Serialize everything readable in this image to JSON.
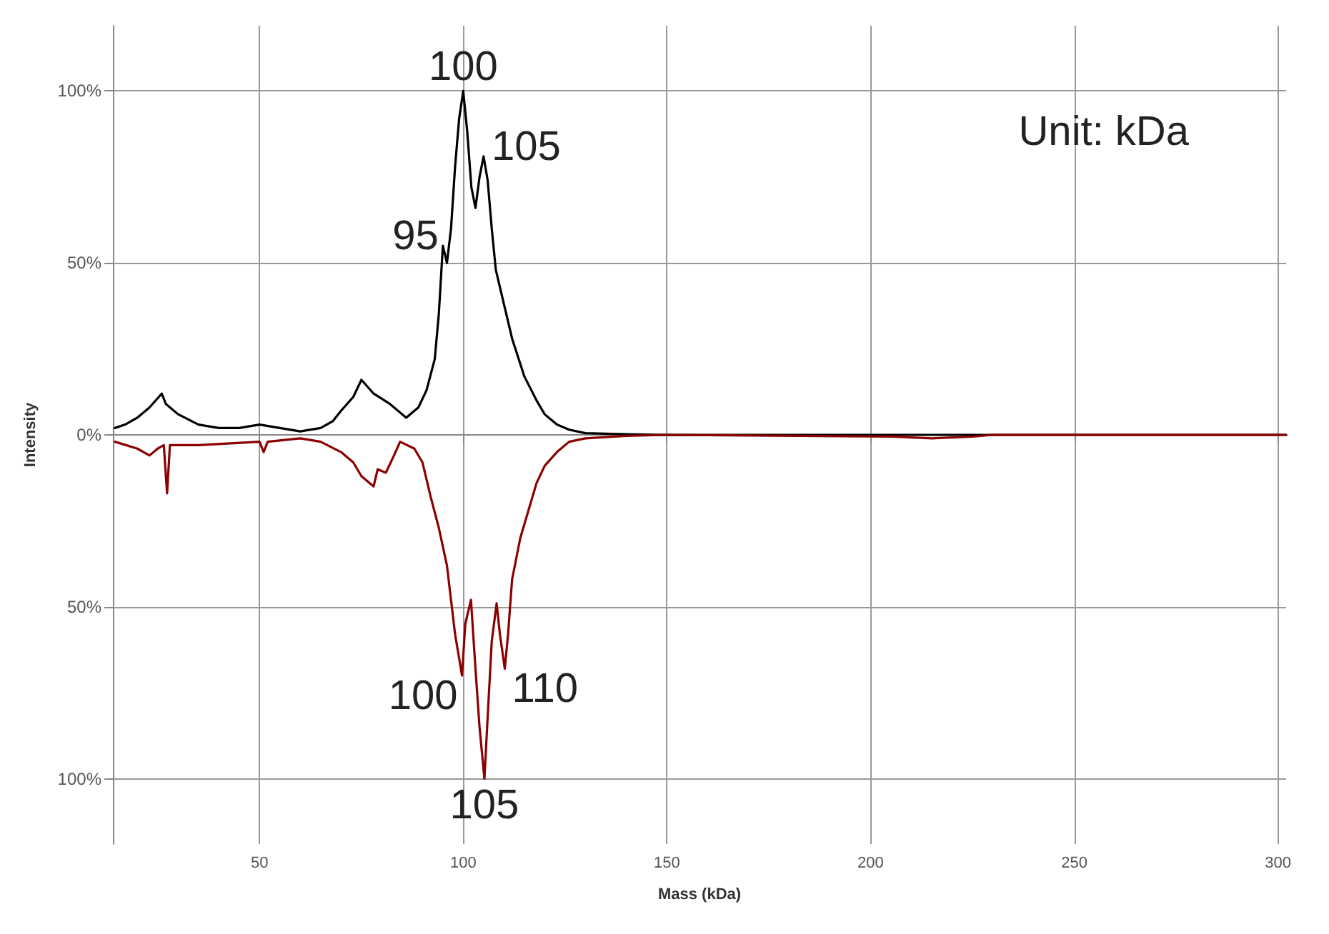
{
  "chart_data": {
    "type": "line",
    "xlabel": "Mass (kDa)",
    "ylabel": "Intensity",
    "xlim": [
      14,
      302
    ],
    "ylim": [
      -119,
      119
    ],
    "xticks": [
      50,
      100,
      150,
      200,
      250,
      300
    ],
    "yticks": [
      {
        "value": 100,
        "label": "100%"
      },
      {
        "value": 50,
        "label": "50%"
      },
      {
        "value": 0,
        "label": "0%"
      },
      {
        "value": -50,
        "label": "50%"
      },
      {
        "value": -100,
        "label": "100%"
      }
    ],
    "grid": true,
    "marker": "none",
    "line_style": "solid",
    "series": [
      {
        "color": "#000000",
        "x": [
          14.5,
          17,
          20,
          23,
          26,
          27,
          30,
          35,
          40,
          45,
          50,
          55,
          60,
          65,
          68,
          70,
          73,
          75,
          78,
          82,
          85,
          86,
          89,
          91,
          93,
          94,
          95,
          96,
          97,
          98,
          99,
          100,
          101,
          102,
          103,
          104,
          105,
          106,
          107,
          108,
          110,
          112,
          115,
          118,
          120,
          123,
          126,
          130,
          140,
          150,
          200,
          250,
          302
        ],
        "values": [
          2,
          3,
          5,
          8,
          12,
          9,
          6,
          3,
          2,
          2,
          3,
          2,
          1,
          2,
          4,
          7,
          11,
          16,
          12,
          9,
          6,
          5,
          8,
          13,
          22,
          35,
          55,
          50,
          60,
          78,
          92,
          100,
          88,
          72,
          66,
          75,
          81,
          74,
          60,
          48,
          38,
          28,
          17,
          10,
          6,
          3,
          1.5,
          0.5,
          0.2,
          0,
          0,
          0,
          0
        ]
      },
      {
        "color": "#8b0000",
        "x": [
          14.5,
          20,
          23,
          25,
          26.5,
          27.3,
          28,
          35,
          50,
          51,
          52,
          60,
          65,
          70,
          73,
          75,
          78,
          79,
          81,
          83,
          84.5,
          88,
          90,
          92,
          94,
          96,
          98,
          99.7,
          100.5,
          101.9,
          103,
          104,
          105.2,
          106,
          107,
          108.2,
          109,
          110.2,
          111,
          112,
          114,
          116,
          118,
          120,
          123,
          126,
          130,
          140,
          150,
          205,
          215,
          225,
          230,
          302
        ],
        "values": [
          -2,
          -4,
          -6,
          -4,
          -3,
          -17,
          -3,
          -3,
          -2,
          -5,
          -2,
          -1,
          -2,
          -5,
          -8,
          -12,
          -15,
          -10,
          -11,
          -6,
          -2,
          -4,
          -8,
          -18,
          -27,
          -38,
          -58,
          -70,
          -55,
          -48,
          -68,
          -85,
          -100,
          -82,
          -60,
          -49,
          -58,
          -68,
          -58,
          -42,
          -30,
          -22,
          -14,
          -9,
          -5,
          -2,
          -1,
          -0.3,
          0,
          -0.5,
          -1,
          -0.5,
          0,
          0
        ]
      }
    ],
    "annotations": [
      {
        "text": "100",
        "x": 100,
        "y": 100
      },
      {
        "text": "105",
        "x": 105.2,
        "y": 81
      },
      {
        "text": "95",
        "x": 95,
        "y": 55
      },
      {
        "text": "100",
        "x": 99.7,
        "y": -70
      },
      {
        "text": "110",
        "x": 110.2,
        "y": -68
      },
      {
        "text": "105",
        "x": 105.2,
        "y": -100
      },
      "Unit: kDa"
    ]
  }
}
